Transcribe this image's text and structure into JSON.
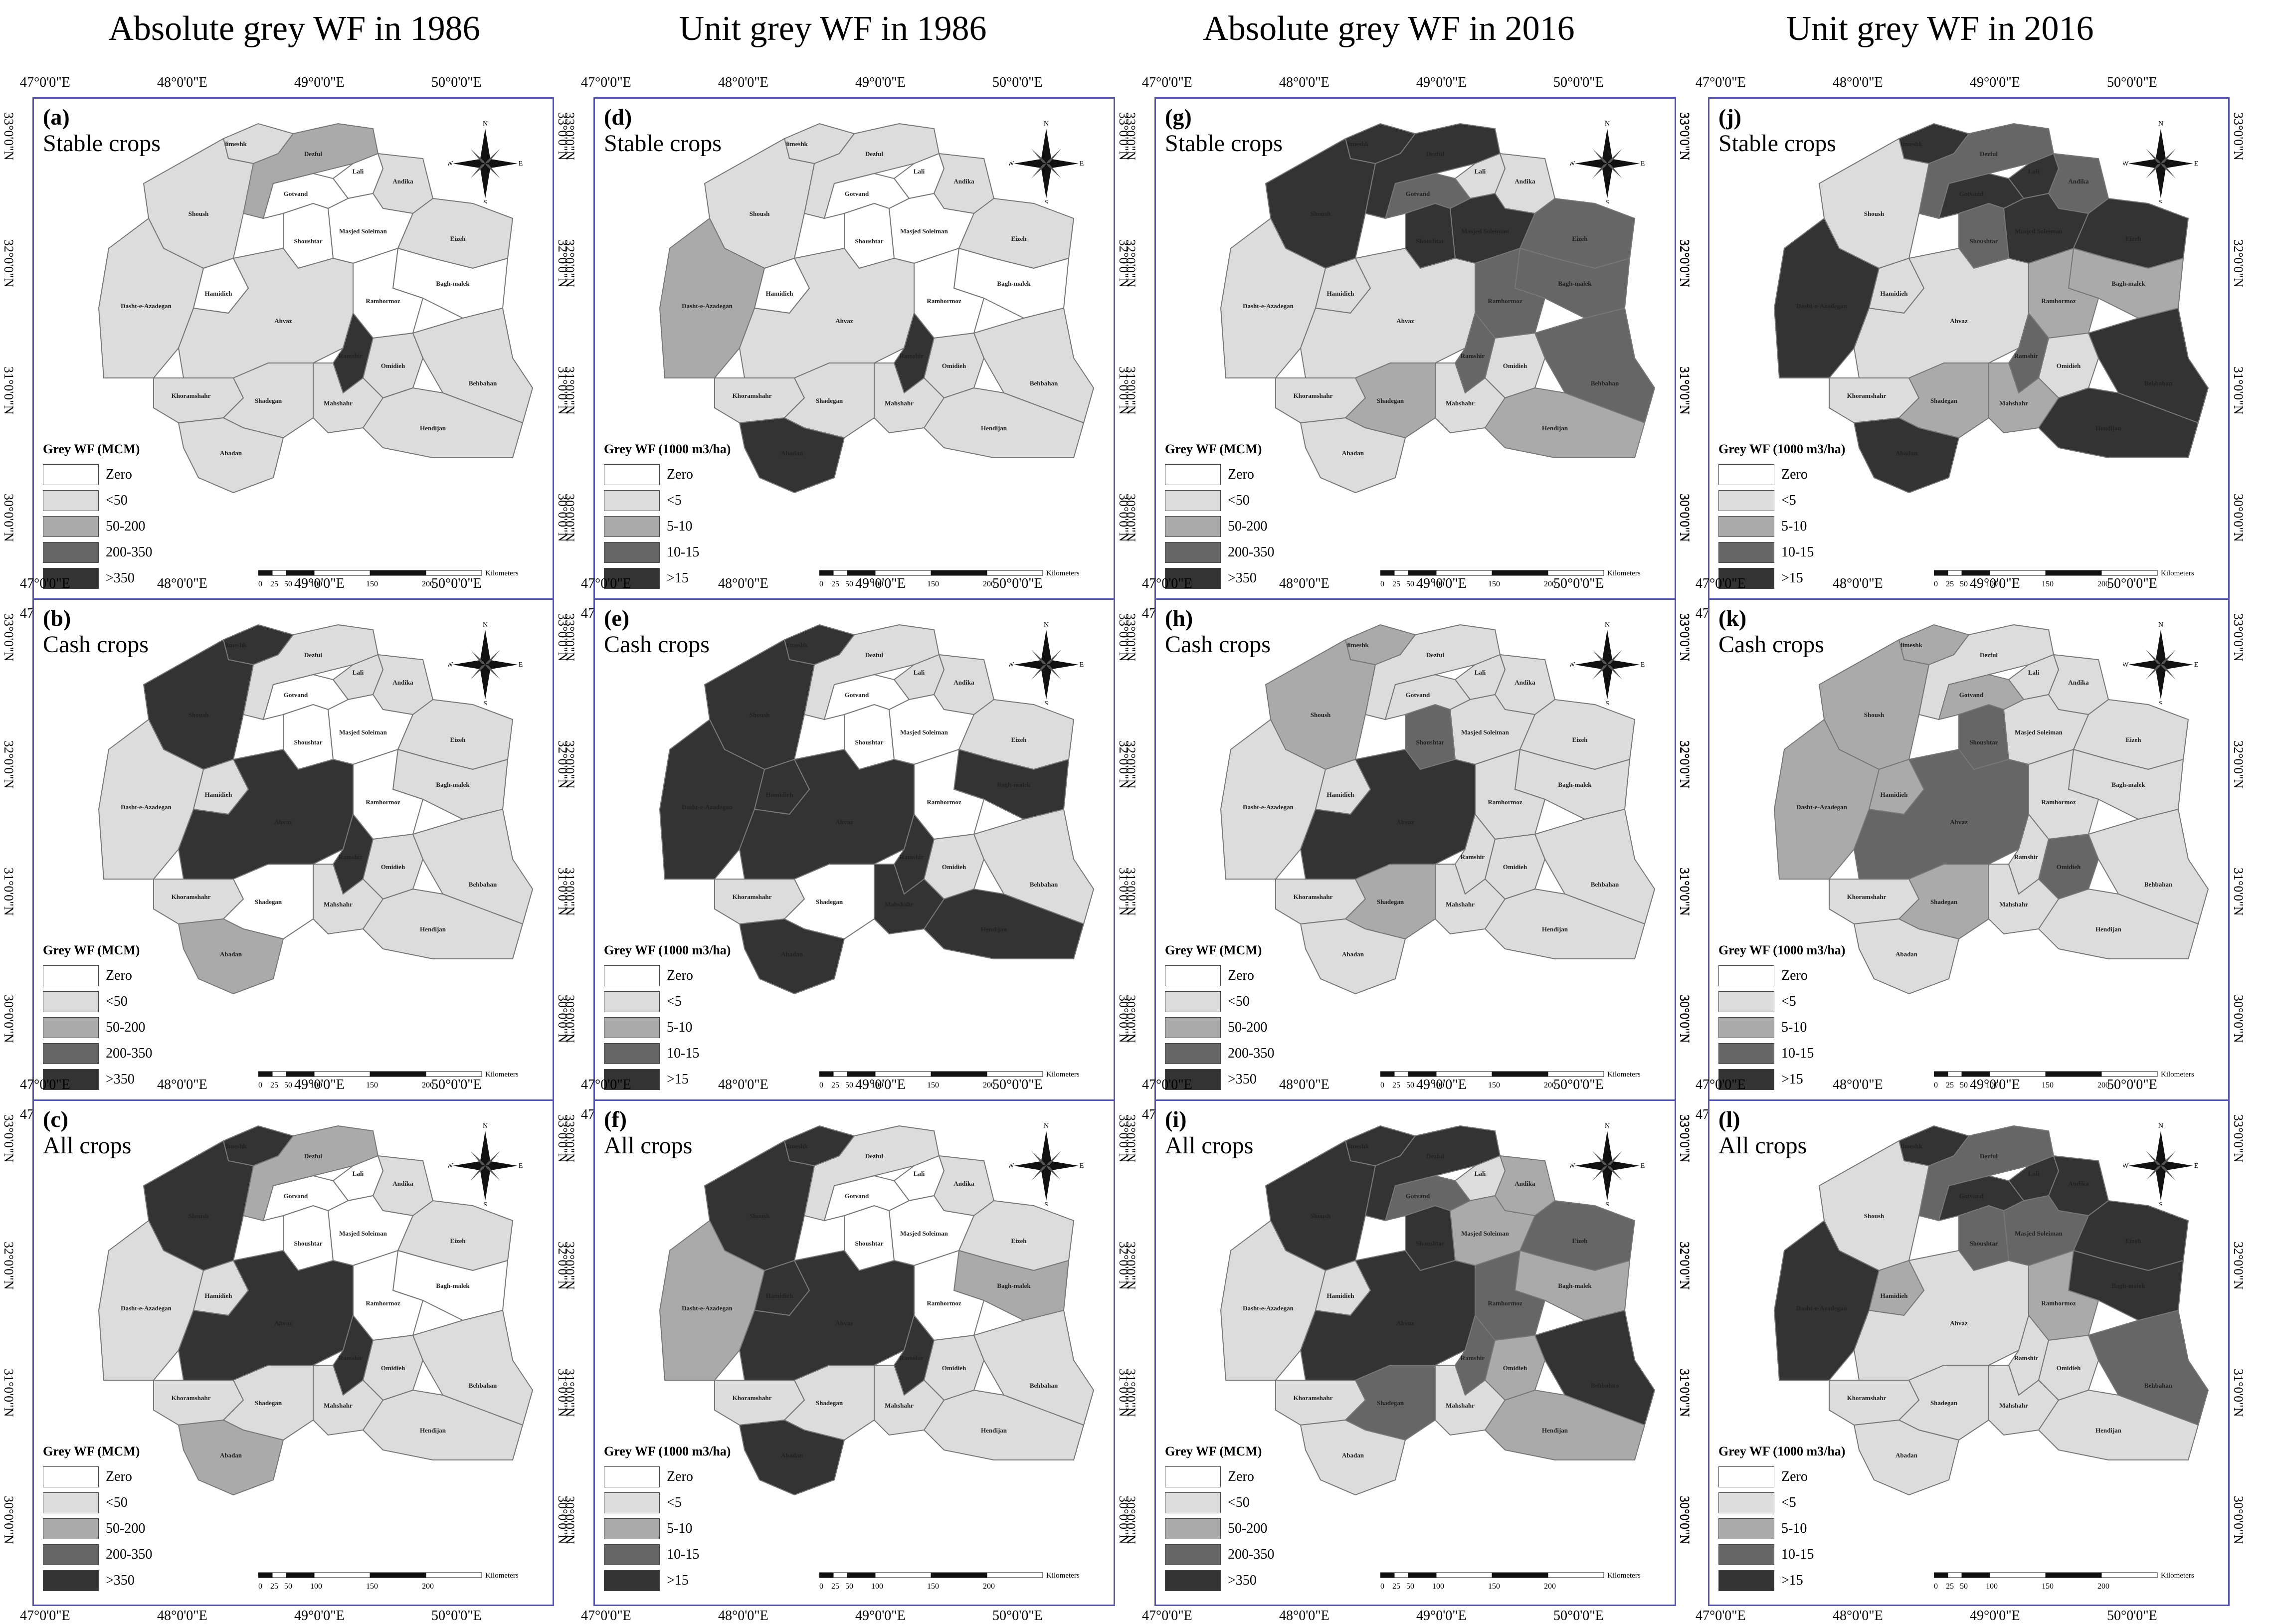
{
  "column_titles": [
    "Absolute grey WF in 1986",
    "Unit grey WF in 1986",
    "Absolute grey WF in 2016",
    "Unit grey WF in 2016"
  ],
  "lon_ticks": [
    "47°0'0\"E",
    "48°0'0\"E",
    "49°0'0\"E",
    "50°0'0\"E"
  ],
  "lat_ticks": [
    "33°0'0\"N",
    "32°0'0\"N",
    "31°0'0\"N",
    "30°0'0\"N"
  ],
  "legend_abs": {
    "title": "Grey WF (MCM)",
    "labels": [
      "Zero",
      "<50",
      "50-200",
      "200-350",
      ">350"
    ]
  },
  "legend_unit": {
    "title": "Grey WF (1000 m3/ha)",
    "labels": [
      "Zero",
      "<5",
      "5-10",
      "10-15",
      ">15"
    ]
  },
  "colors": {
    "c0": "#ffffff",
    "c1": "#dcdcdc",
    "c2": "#aaaaaa",
    "c3": "#666666",
    "c4": "#333333"
  },
  "north_labels": {
    "n": "N",
    "s": "S",
    "e": "E",
    "w": "W"
  },
  "scale": {
    "ticks": [
      "0",
      "25",
      "50",
      "100",
      "150",
      "200"
    ],
    "unit": "Kilometers"
  },
  "districts": [
    "Andimeshk",
    "Dezful",
    "Lali",
    "Gotvand",
    "Andika",
    "Shoush",
    "Shoushtar",
    "Masjed Soleiman",
    "Eizeh",
    "Dasht-e-Azadegan",
    "Hamidieh",
    "Bagh-malek",
    "Ahvaz",
    "Ramhormoz",
    "Ramshir",
    "Omidieh",
    "Khoramshahr",
    "Shadegan",
    "Mahshahr",
    "Behbahan",
    "Hendijan",
    "Abadan"
  ],
  "panels": [
    {
      "id": "(a)",
      "crop": "Stable crops",
      "legend": "abs",
      "fills": [
        1,
        2,
        0,
        0,
        1,
        1,
        0,
        0,
        1,
        1,
        0,
        0,
        1,
        0,
        4,
        1,
        1,
        1,
        1,
        1,
        1,
        1
      ]
    },
    {
      "id": "(d)",
      "crop": "Stable crops",
      "legend": "unit",
      "fills": [
        1,
        1,
        0,
        0,
        1,
        1,
        0,
        0,
        1,
        2,
        0,
        0,
        1,
        0,
        4,
        1,
        1,
        1,
        1,
        1,
        1,
        4
      ]
    },
    {
      "id": "(g)",
      "crop": "Stable crops",
      "legend": "abs",
      "fills": [
        4,
        4,
        1,
        3,
        1,
        4,
        4,
        4,
        3,
        1,
        1,
        3,
        1,
        3,
        3,
        1,
        1,
        2,
        1,
        3,
        2,
        1
      ]
    },
    {
      "id": "(j)",
      "crop": "Stable crops",
      "legend": "unit",
      "fills": [
        4,
        3,
        4,
        4,
        3,
        1,
        3,
        4,
        4,
        4,
        1,
        2,
        1,
        2,
        3,
        1,
        1,
        2,
        2,
        4,
        4,
        4
      ]
    },
    {
      "id": "(b)",
      "crop": "Cash crops",
      "legend": "abs",
      "fills": [
        4,
        1,
        1,
        0,
        1,
        4,
        0,
        0,
        1,
        1,
        1,
        1,
        4,
        0,
        4,
        1,
        1,
        0,
        1,
        1,
        1,
        2
      ]
    },
    {
      "id": "(e)",
      "crop": "Cash crops",
      "legend": "unit",
      "fills": [
        4,
        1,
        1,
        0,
        1,
        4,
        0,
        0,
        1,
        4,
        4,
        4,
        4,
        0,
        4,
        1,
        1,
        0,
        4,
        1,
        4,
        4
      ]
    },
    {
      "id": "(h)",
      "crop": "Cash crops",
      "legend": "abs",
      "fills": [
        2,
        1,
        1,
        1,
        1,
        2,
        3,
        1,
        1,
        1,
        1,
        1,
        4,
        1,
        1,
        1,
        1,
        2,
        1,
        1,
        1,
        1
      ]
    },
    {
      "id": "(k)",
      "crop": "Cash crops",
      "legend": "unit",
      "fills": [
        2,
        1,
        1,
        2,
        1,
        2,
        3,
        1,
        1,
        2,
        2,
        1,
        3,
        1,
        1,
        3,
        1,
        2,
        1,
        1,
        1,
        1
      ]
    },
    {
      "id": "(c)",
      "crop": "All crops",
      "legend": "abs",
      "fills": [
        4,
        2,
        0,
        0,
        1,
        4,
        0,
        0,
        1,
        1,
        1,
        0,
        4,
        0,
        4,
        1,
        1,
        1,
        1,
        1,
        1,
        2
      ]
    },
    {
      "id": "(f)",
      "crop": "All crops",
      "legend": "unit",
      "fills": [
        4,
        1,
        0,
        0,
        1,
        4,
        0,
        0,
        1,
        2,
        4,
        2,
        4,
        0,
        4,
        1,
        1,
        1,
        1,
        1,
        1,
        4
      ]
    },
    {
      "id": "(i)",
      "crop": "All crops",
      "legend": "abs",
      "fills": [
        4,
        4,
        1,
        3,
        2,
        4,
        4,
        2,
        3,
        1,
        1,
        2,
        4,
        3,
        3,
        2,
        1,
        3,
        1,
        4,
        2,
        1
      ]
    },
    {
      "id": "(l)",
      "crop": "All crops",
      "legend": "unit",
      "fills": [
        4,
        3,
        4,
        4,
        4,
        1,
        3,
        3,
        4,
        4,
        2,
        4,
        1,
        2,
        1,
        1,
        1,
        1,
        1,
        3,
        1,
        1
      ]
    }
  ]
}
